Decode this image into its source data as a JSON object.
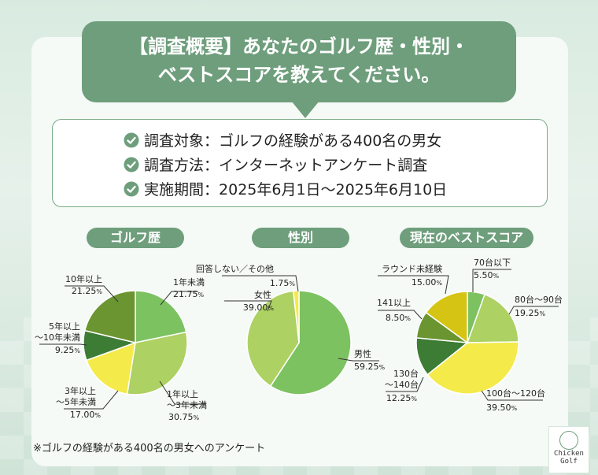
{
  "header": {
    "title_line1": "【調査概要】あなたのゴルフ歴・性別・",
    "title_line2": "ベストスコアを教えてください。"
  },
  "survey_info": [
    {
      "label": "調査対象",
      "value": "ゴルフの経験がある400名の男女"
    },
    {
      "label": "調査方法",
      "value": "インターネットアンケート調査"
    },
    {
      "label": "実施期間",
      "value": "2025年6月1日～2025年6月10日"
    }
  ],
  "icons": {
    "check": "check-badge-icon",
    "logo": "chicken-logo-icon"
  },
  "colors": {
    "accent": "#6e9e7c"
  },
  "footnote": "※ゴルフの経験がある400名の男女へのアンケート",
  "logo_text": {
    "line1": "Chicken",
    "line2": "Golf"
  },
  "chart_data": [
    {
      "type": "pie",
      "title": "ゴルフ歴",
      "unit": "%",
      "slices": [
        {
          "label": "1年未満",
          "value": 21.75,
          "color": "#7dc261"
        },
        {
          "label": "1年以上～3年未満",
          "value": 30.75,
          "color": "#add162"
        },
        {
          "label": "3年以上～5年未満",
          "value": 17.0,
          "color": "#f4ea4a"
        },
        {
          "label": "5年以上～10年未満",
          "value": 9.25,
          "color": "#3d7c35"
        },
        {
          "label": "10年以上",
          "value": 21.25,
          "color": "#6b9531"
        }
      ]
    },
    {
      "type": "pie",
      "title": "性別",
      "unit": "%",
      "slices": [
        {
          "label": "男性",
          "value": 59.25,
          "color": "#7dc261"
        },
        {
          "label": "女性",
          "value": 39.0,
          "color": "#add162"
        },
        {
          "label": "回答しない／その他",
          "value": 1.75,
          "color": "#f4ea4a"
        }
      ]
    },
    {
      "type": "pie",
      "title": "現在のベストスコア",
      "unit": "%",
      "slices": [
        {
          "label": "70台以下",
          "value": 5.5,
          "color": "#7dc261"
        },
        {
          "label": "80台～90台",
          "value": 19.25,
          "color": "#add162"
        },
        {
          "label": "100台～120台",
          "value": 39.5,
          "color": "#f4ea4a"
        },
        {
          "label": "130台～140台",
          "value": 12.25,
          "color": "#3d7c35"
        },
        {
          "label": "141以上",
          "value": 8.5,
          "color": "#6b9531"
        },
        {
          "label": "ラウンド未経験",
          "value": 15.0,
          "color": "#d5c413"
        }
      ]
    }
  ]
}
